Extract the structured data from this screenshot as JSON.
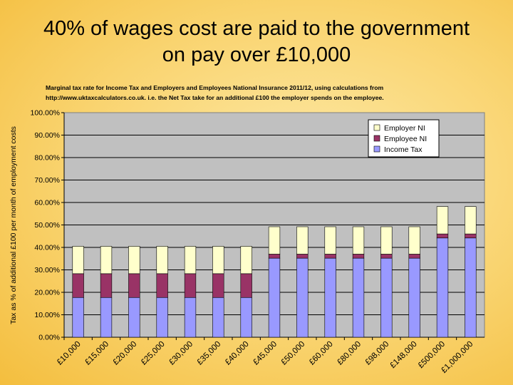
{
  "slide": {
    "title_line1": "40% of wages cost are paid to the government",
    "title_line2": "on pay over £10,000"
  },
  "chart_data": {
    "type": "bar",
    "stacked": true,
    "subtitle_line1": "Marginal tax rate for Income Tax and Employers and Employees National Insurance 2011/12,  using calculations from",
    "subtitle_line2": "http://www.uktaxcalculators.co.uk.  i.e. the Net Tax take for an additional £100 the employer spends on the employee.",
    "ylabel": "Tax as % of additional £100 per month of employment costs",
    "xlabel": "",
    "ylim": [
      0,
      100
    ],
    "yticks": [
      "0.00%",
      "10.00%",
      "20.00%",
      "30.00%",
      "40.00%",
      "50.00%",
      "60.00%",
      "70.00%",
      "80.00%",
      "90.00%",
      "100.00%"
    ],
    "grid": true,
    "legend_position": "top-right",
    "categories": [
      "£10,000",
      "£15,000",
      "£20,000",
      "£25,000",
      "£30,000",
      "£35,000",
      "£40,000",
      "£45,000",
      "£50,000",
      "£60,000",
      "£80,000",
      "£98,000",
      "£148,000",
      "£500,000",
      "£1,000,000"
    ],
    "series": [
      {
        "name": "Income Tax",
        "color": "#9999ff",
        "values": [
          17.7,
          17.7,
          17.7,
          17.7,
          17.7,
          17.7,
          17.7,
          35.2,
          35.2,
          35.2,
          35.2,
          35.2,
          35.2,
          44.2,
          44.2
        ]
      },
      {
        "name": "Employee NI",
        "color": "#993366",
        "values": [
          10.6,
          10.6,
          10.6,
          10.6,
          10.6,
          10.6,
          10.6,
          1.8,
          1.8,
          1.8,
          1.8,
          1.8,
          1.8,
          1.8,
          1.8
        ]
      },
      {
        "name": "Employer NI",
        "color": "#ffffcc",
        "values": [
          12.2,
          12.2,
          12.2,
          12.2,
          12.2,
          12.2,
          12.2,
          12.2,
          12.2,
          12.2,
          12.2,
          12.2,
          12.2,
          12.2,
          12.2
        ]
      }
    ],
    "legend_order": [
      "Employer NI",
      "Employee NI",
      "Income Tax"
    ],
    "plot_background": "#c0c0c0"
  }
}
